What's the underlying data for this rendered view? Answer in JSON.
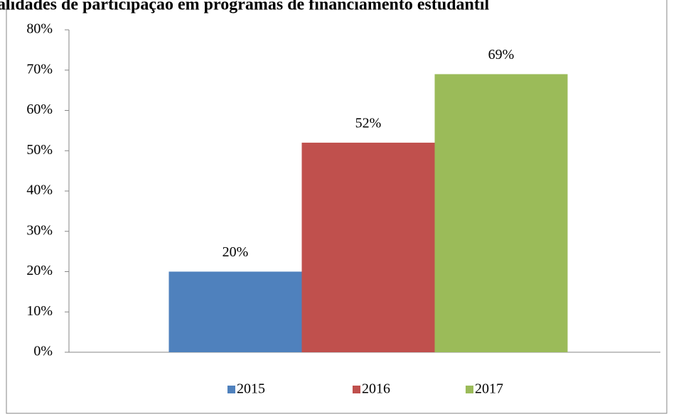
{
  "chart_data": {
    "type": "bar",
    "title": "alidades de participação em programas de financiamento estudantil",
    "categories": [
      null
    ],
    "series": [
      {
        "name": "2015",
        "color": "#4f81bd",
        "values": [
          20
        ],
        "value_labels": [
          "20%"
        ]
      },
      {
        "name": "2016",
        "color": "#c0504d",
        "values": [
          52
        ],
        "value_labels": [
          "52%"
        ]
      },
      {
        "name": "2017",
        "color": "#9bbb59",
        "values": [
          69
        ],
        "value_labels": [
          "69%"
        ]
      }
    ],
    "ylim": [
      0,
      80
    ],
    "yticks": [
      {
        "value": 0,
        "label": "0%"
      },
      {
        "value": 10,
        "label": "10%"
      },
      {
        "value": 20,
        "label": "20%"
      },
      {
        "value": 30,
        "label": "30%"
      },
      {
        "value": 40,
        "label": "40%"
      },
      {
        "value": 50,
        "label": "50%"
      },
      {
        "value": 60,
        "label": "60%"
      },
      {
        "value": 70,
        "label": "70%"
      },
      {
        "value": 80,
        "label": "80%"
      }
    ],
    "grid": false,
    "legend": "bottom"
  }
}
